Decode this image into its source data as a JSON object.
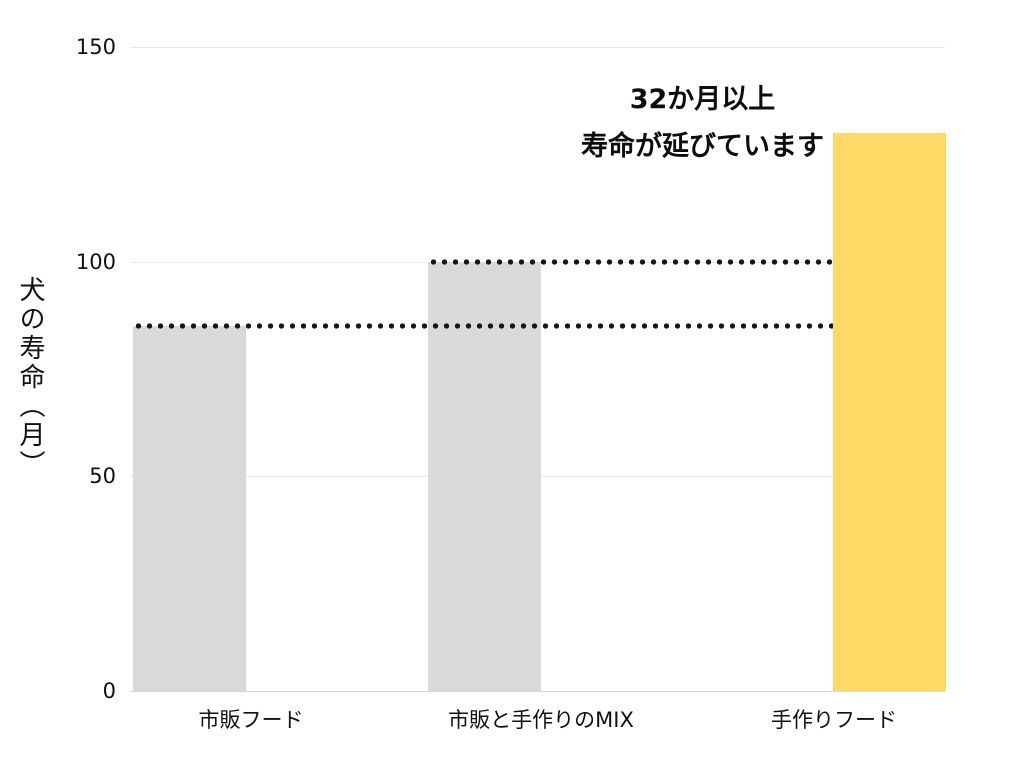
{
  "chart_data": {
    "type": "bar",
    "title": "",
    "ylabel": "犬の寿命（月）",
    "xlabel": "",
    "categories": [
      "市販フード",
      "市販と手作りのMIX",
      "手作りフード"
    ],
    "values": [
      85,
      100,
      130
    ],
    "bar_colors": [
      "#d9d9d9",
      "#d9d9d9",
      "#ffd966"
    ],
    "ylim": [
      0,
      150
    ],
    "yticks": [
      0,
      50,
      100,
      150
    ],
    "grid": true,
    "legend": "none",
    "annotation": {
      "line1": "32か月以上",
      "line2": "寿命が延びています"
    },
    "reference_lines": [
      {
        "value": 85,
        "from_category_index": 0,
        "to_category_index": 2
      },
      {
        "value": 100,
        "from_category_index": 1,
        "to_category_index": 2
      }
    ]
  }
}
